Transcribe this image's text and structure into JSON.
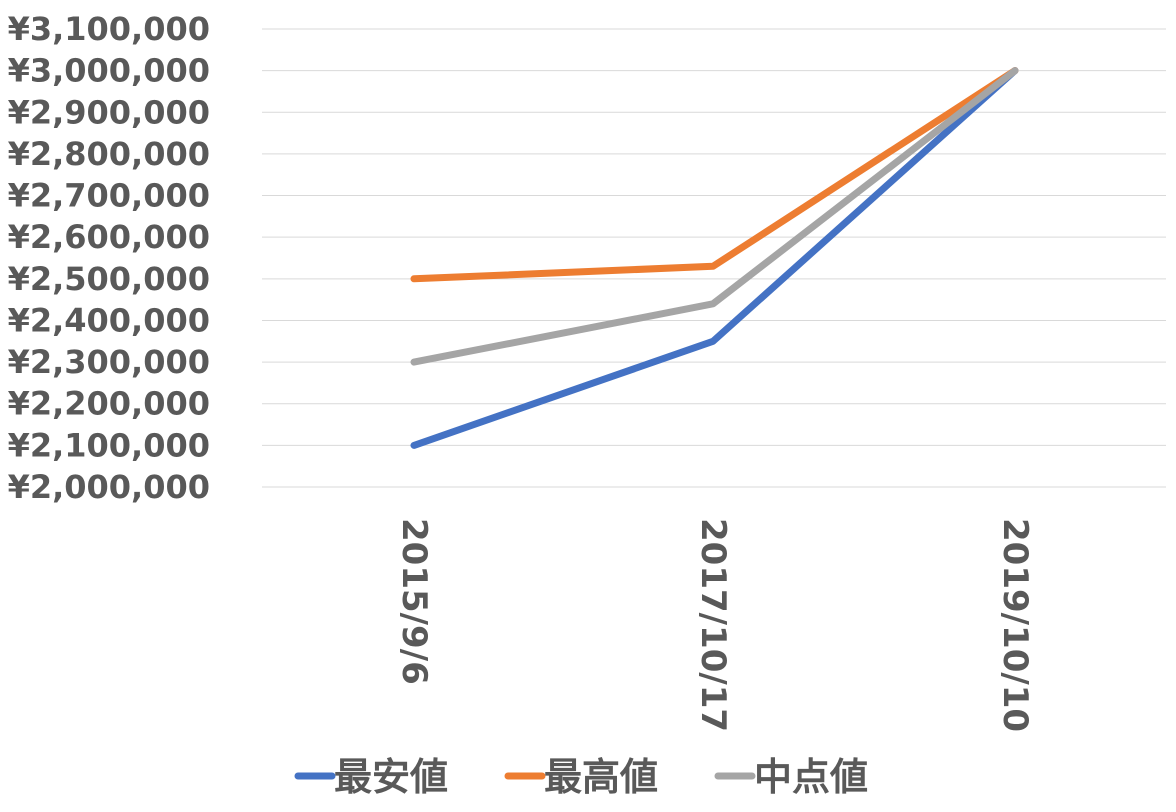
{
  "chart_data": {
    "type": "line",
    "title": "",
    "xlabel": "",
    "ylabel": "",
    "categories": [
      "2015/9/6",
      "2017/10/17",
      "2019/10/10"
    ],
    "series": [
      {
        "name": "最安値",
        "values": [
          2100000,
          2350000,
          3000000
        ],
        "color": "#4472C4"
      },
      {
        "name": "最高値",
        "values": [
          2500000,
          2530000,
          3000000
        ],
        "color": "#ED7D31"
      },
      {
        "name": "中点値",
        "values": [
          2300000,
          2440000,
          3000000
        ],
        "color": "#A5A5A5"
      }
    ],
    "ylim": [
      2000000,
      3100000
    ],
    "y_ticks": [
      "¥2,000,000",
      "¥2,100,000",
      "¥2,200,000",
      "¥2,300,000",
      "¥2,400,000",
      "¥2,500,000",
      "¥2,600,000",
      "¥2,700,000",
      "¥2,800,000",
      "¥2,900,000",
      "¥3,000,000",
      "¥3,100,000"
    ],
    "grid": true,
    "legend": "bottom"
  }
}
